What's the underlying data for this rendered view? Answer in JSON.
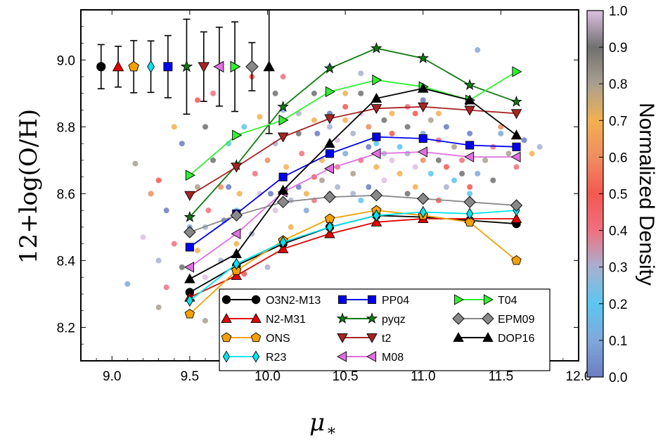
{
  "chart_data": {
    "type": "scatter",
    "xlabel": "μ",
    "xlabel_subscript": "*",
    "ylabel": "12+log(O/H)",
    "xlim": [
      8.8,
      12.0
    ],
    "ylim": [
      8.1,
      9.15
    ],
    "x_ticks": [
      "9.0",
      "9.5",
      "10.0",
      "10.5",
      "11.0",
      "11.5",
      "12.0"
    ],
    "y_ticks": [
      "8.2",
      "8.4",
      "8.6",
      "8.8",
      "9.0"
    ],
    "colorbar": {
      "label": "Normalized Density",
      "range": [
        0.0,
        1.0
      ],
      "ticks": [
        "0.0",
        "0.1",
        "0.2",
        "0.3",
        "0.4",
        "0.5",
        "0.6",
        "0.7",
        "0.8",
        "0.9",
        "1.0"
      ],
      "colors": [
        "#6b7dc2",
        "#7fa8dc",
        "#5cc6f0",
        "#a8b0d0",
        "#f07080",
        "#f45850",
        "#f08c60",
        "#f2b050",
        "#a8a090",
        "#707070",
        "#dcc0e0"
      ]
    },
    "x": [
      9.5,
      9.8,
      10.1,
      10.4,
      10.7,
      11.0,
      11.3,
      11.6
    ],
    "series": [
      {
        "name": "O3N2-M13",
        "color": "#000000",
        "marker": "circle",
        "values": [
          8.305,
          8.385,
          8.45,
          8.5,
          8.535,
          8.53,
          8.52,
          8.51
        ]
      },
      {
        "name": "N2-M31",
        "color": "#e00000",
        "marker": "triangle-up",
        "values": [
          8.29,
          8.355,
          8.435,
          8.48,
          8.515,
          8.525,
          8.525,
          8.525
        ]
      },
      {
        "name": "ONS",
        "color": "#f5a000",
        "marker": "pentagon",
        "values": [
          8.24,
          8.37,
          8.46,
          8.525,
          8.55,
          8.535,
          8.515,
          8.4
        ]
      },
      {
        "name": "R23",
        "color": "#00e5ee",
        "marker": "diamond-thin",
        "values": [
          8.28,
          8.39,
          8.455,
          8.5,
          8.535,
          8.545,
          8.54,
          8.55
        ]
      },
      {
        "name": "PP04",
        "color": "#0000ee",
        "marker": "square",
        "values": [
          8.44,
          8.54,
          8.65,
          8.72,
          8.77,
          8.765,
          8.745,
          8.74
        ]
      },
      {
        "name": "pyqz",
        "color": "#117a11",
        "marker": "star",
        "values": [
          8.53,
          8.685,
          8.86,
          8.975,
          9.035,
          9.005,
          8.925,
          8.875
        ]
      },
      {
        "name": "t2",
        "color": "#a82424",
        "marker": "triangle-down",
        "values": [
          8.595,
          8.68,
          8.77,
          8.825,
          8.855,
          8.86,
          8.85,
          8.84
        ]
      },
      {
        "name": "M08",
        "color": "#e070e0",
        "marker": "triangle-left",
        "values": [
          8.38,
          8.48,
          8.605,
          8.675,
          8.72,
          8.725,
          8.71,
          8.71
        ]
      },
      {
        "name": "T04",
        "color": "#33ee33",
        "marker": "triangle-right",
        "values": [
          8.655,
          8.775,
          8.82,
          8.905,
          8.94,
          8.92,
          8.88,
          8.965
        ]
      },
      {
        "name": "EPM09",
        "color": "#888888",
        "marker": "diamond",
        "values": [
          8.485,
          8.535,
          8.575,
          8.59,
          8.595,
          8.585,
          8.575,
          8.565
        ]
      },
      {
        "name": "DOP16",
        "color": "#000000",
        "marker": "triangle-up",
        "values": [
          8.345,
          8.42,
          8.61,
          8.75,
          8.885,
          8.915,
          8.88,
          8.775
        ]
      }
    ],
    "error_bars": [
      {
        "series": "O3N2-M13",
        "x": 8.93,
        "y": 8.98,
        "err": 0.066
      },
      {
        "series": "N2-M31",
        "x": 9.04,
        "y": 8.98,
        "err": 0.061
      },
      {
        "series": "ONS",
        "x": 9.14,
        "y": 8.98,
        "err": 0.078
      },
      {
        "series": "R23",
        "x": 9.25,
        "y": 8.98,
        "err": 0.077
      },
      {
        "series": "PP04",
        "x": 9.36,
        "y": 8.98,
        "err": 0.093
      },
      {
        "series": "pyqz",
        "x": 9.48,
        "y": 8.98,
        "err": 0.142
      },
      {
        "series": "t2",
        "x": 9.59,
        "y": 8.98,
        "err": 0.104
      },
      {
        "series": "M08",
        "x": 9.69,
        "y": 8.98,
        "err": 0.118
      },
      {
        "series": "T04",
        "x": 9.79,
        "y": 8.98,
        "err": 0.134
      },
      {
        "series": "EPM09",
        "x": 9.9,
        "y": 8.98,
        "err": 0.072
      },
      {
        "series": "DOP16",
        "x": 10.01,
        "y": 8.98,
        "err": 0.2
      }
    ],
    "background_points": [
      [
        9.55,
        8.43
      ],
      [
        9.6,
        8.5
      ],
      [
        9.45,
        8.38
      ],
      [
        9.7,
        8.62
      ],
      [
        9.8,
        8.55
      ],
      [
        9.65,
        8.7
      ],
      [
        9.4,
        8.45
      ],
      [
        9.35,
        8.55
      ],
      [
        9.5,
        8.6
      ],
      [
        9.3,
        8.4
      ],
      [
        9.2,
        8.47
      ],
      [
        9.25,
        8.6
      ],
      [
        9.1,
        8.33
      ],
      [
        9.15,
        8.69
      ],
      [
        9.3,
        8.64
      ],
      [
        9.9,
        8.48
      ],
      [
        9.95,
        8.6
      ],
      [
        10.0,
        8.7
      ],
      [
        9.85,
        8.8
      ],
      [
        10.05,
        8.9
      ],
      [
        9.9,
        8.95
      ],
      [
        10.1,
        8.85
      ],
      [
        10.2,
        8.78
      ],
      [
        10.3,
        8.65
      ],
      [
        10.25,
        8.55
      ],
      [
        10.15,
        8.5
      ],
      [
        9.75,
        8.75
      ],
      [
        9.6,
        8.8
      ],
      [
        9.55,
        8.88
      ],
      [
        9.45,
        8.75
      ],
      [
        9.4,
        8.8
      ],
      [
        9.65,
        8.9
      ],
      [
        9.75,
        8.62
      ],
      [
        9.8,
        8.45
      ],
      [
        9.7,
        8.4
      ],
      [
        9.6,
        8.35
      ],
      [
        9.9,
        8.3
      ],
      [
        10.0,
        8.38
      ],
      [
        10.1,
        8.3
      ],
      [
        9.85,
        8.25
      ],
      [
        9.5,
        8.5
      ],
      [
        9.55,
        8.62
      ],
      [
        9.62,
        8.55
      ],
      [
        9.72,
        8.52
      ],
      [
        9.82,
        8.6
      ],
      [
        9.92,
        8.66
      ],
      [
        10.02,
        8.6
      ],
      [
        10.12,
        8.68
      ],
      [
        10.22,
        8.72
      ],
      [
        10.32,
        8.78
      ],
      [
        10.35,
        8.7
      ],
      [
        10.4,
        8.8
      ],
      [
        10.45,
        8.76
      ],
      [
        10.5,
        8.82
      ],
      [
        10.55,
        8.78
      ],
      [
        10.6,
        8.84
      ],
      [
        10.65,
        8.8
      ],
      [
        10.7,
        8.75
      ],
      [
        10.75,
        8.82
      ],
      [
        10.8,
        8.78
      ],
      [
        10.85,
        8.74
      ],
      [
        10.9,
        8.8
      ],
      [
        10.95,
        8.84
      ],
      [
        11.0,
        8.78
      ],
      [
        11.05,
        8.82
      ],
      [
        11.1,
        8.76
      ],
      [
        11.15,
        8.8
      ],
      [
        11.2,
        8.74
      ],
      [
        11.25,
        8.7
      ],
      [
        11.3,
        8.78
      ],
      [
        10.45,
        8.68
      ],
      [
        10.5,
        8.72
      ],
      [
        10.55,
        8.66
      ],
      [
        10.6,
        8.7
      ],
      [
        10.65,
        8.74
      ],
      [
        10.7,
        8.68
      ],
      [
        10.75,
        8.72
      ],
      [
        10.8,
        8.7
      ],
      [
        10.85,
        8.66
      ],
      [
        10.9,
        8.72
      ],
      [
        10.95,
        8.68
      ],
      [
        11.0,
        8.7
      ],
      [
        11.05,
        8.66
      ],
      [
        11.1,
        8.7
      ],
      [
        11.15,
        8.68
      ],
      [
        11.2,
        8.64
      ],
      [
        11.25,
        8.66
      ],
      [
        11.3,
        8.62
      ],
      [
        11.35,
        8.66
      ],
      [
        11.4,
        8.7
      ],
      [
        11.45,
        8.74
      ],
      [
        11.5,
        8.78
      ],
      [
        11.55,
        8.72
      ],
      [
        11.6,
        8.68
      ],
      [
        11.65,
        8.76
      ],
      [
        11.7,
        8.72
      ],
      [
        11.75,
        8.74
      ],
      [
        11.45,
        8.64
      ],
      [
        11.5,
        8.8
      ],
      [
        11.35,
        9.03
      ],
      [
        10.7,
        8.6
      ],
      [
        10.6,
        8.58
      ],
      [
        10.4,
        8.6
      ],
      [
        10.3,
        8.58
      ],
      [
        10.2,
        8.62
      ],
      [
        10.9,
        8.6
      ],
      [
        11.1,
        8.58
      ],
      [
        11.3,
        8.6
      ],
      [
        10.5,
        8.9
      ],
      [
        10.6,
        8.96
      ],
      [
        10.3,
        8.9
      ],
      [
        10.1,
        8.95
      ],
      [
        10.4,
        8.98
      ],
      [
        9.95,
        8.83
      ],
      [
        10.05,
        8.75
      ],
      [
        9.3,
        8.26
      ],
      [
        9.35,
        8.32
      ],
      [
        9.8,
        8.2
      ],
      [
        9.6,
        8.22
      ],
      [
        9.85,
        8.36
      ],
      [
        10.55,
        8.6
      ],
      [
        10.75,
        8.64
      ],
      [
        10.95,
        8.62
      ],
      [
        11.15,
        8.62
      ],
      [
        10.35,
        8.64
      ],
      [
        10.15,
        8.58
      ],
      [
        10.05,
        8.55
      ],
      [
        10.25,
        8.6
      ],
      [
        10.45,
        8.62
      ],
      [
        10.65,
        8.62
      ],
      [
        10.8,
        8.84
      ],
      [
        10.9,
        8.86
      ],
      [
        11.0,
        8.88
      ],
      [
        11.1,
        8.84
      ],
      [
        10.7,
        8.86
      ],
      [
        10.6,
        8.9
      ],
      [
        10.5,
        8.86
      ],
      [
        10.4,
        8.84
      ],
      [
        10.3,
        8.82
      ],
      [
        10.2,
        8.84
      ]
    ]
  }
}
